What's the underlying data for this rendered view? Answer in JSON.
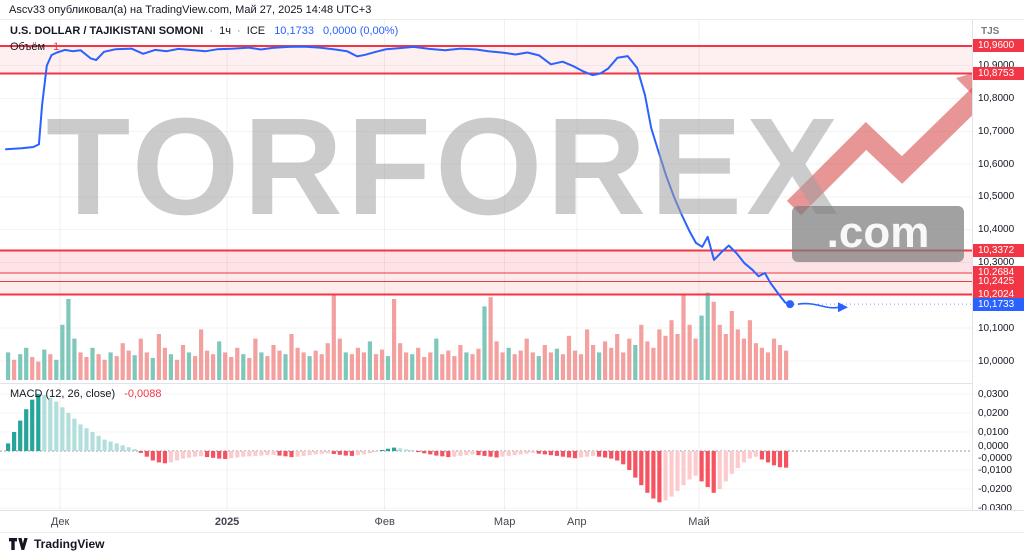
{
  "topbar": {
    "publish_text": "Ascv33 опубликовал(а) на TradingView.com, Май 27, 2025 14:48 UTC+3"
  },
  "header": {
    "symbol": "U.S. DOLLAR / TAJIKISTANI SOMONI",
    "sep": "·",
    "timeframe": "1ч",
    "exchange": "ICE",
    "price": "10,1733",
    "change": "0,0000 (0,00%)",
    "volume_label": "Объём",
    "volume_value": "1"
  },
  "macd_legend": {
    "label": "MACD (12, 26, close)",
    "value": "-0,0088"
  },
  "axis": {
    "currency": "TJS"
  },
  "watermark": {
    "text": "TORFOREX",
    "suffix": ".com"
  },
  "footer": {
    "brand": "TradingView"
  },
  "colors": {
    "accent_blue": "#2962FF",
    "level_red": "#F23645",
    "vol_up": "#6FC2B4",
    "vol_down": "#F29695",
    "macd_pos_rise": "#26A69A",
    "macd_pos_fall": "#B2DFDB",
    "macd_neg_fall": "#F7525F",
    "macd_neg_rise": "#FCCBCD"
  },
  "chart_data": {
    "type": "line",
    "title": "USD/TJS 1h line chart with volume and MACD",
    "price_axis": {
      "min": 9.933,
      "max": 11.039
    },
    "price_line": {
      "color": "#2962FF",
      "points": [
        [
          0,
          10.645
        ],
        [
          2,
          10.648
        ],
        [
          3.5,
          10.652
        ],
        [
          4.2,
          10.66
        ],
        [
          4.6,
          10.78
        ],
        [
          5.2,
          10.9
        ],
        [
          5.8,
          10.932
        ],
        [
          6.5,
          10.94
        ],
        [
          7.5,
          10.948
        ],
        [
          8.5,
          10.944
        ],
        [
          9.5,
          10.947
        ],
        [
          10.8,
          10.922
        ],
        [
          11.5,
          10.917
        ],
        [
          12.5,
          10.942
        ],
        [
          14,
          10.95
        ],
        [
          16,
          10.952
        ],
        [
          17.5,
          10.936
        ],
        [
          19,
          10.948
        ],
        [
          20.5,
          10.944
        ],
        [
          22,
          10.951
        ],
        [
          24,
          10.947
        ],
        [
          25.5,
          10.944
        ],
        [
          27,
          10.95
        ],
        [
          29,
          10.952
        ],
        [
          31,
          10.955
        ],
        [
          32.5,
          10.949
        ],
        [
          34,
          10.954
        ],
        [
          36,
          10.957
        ],
        [
          38,
          10.958
        ],
        [
          40,
          10.955
        ],
        [
          42,
          10.949
        ],
        [
          43.5,
          10.944
        ],
        [
          44.8,
          10.928
        ],
        [
          45.8,
          10.933
        ],
        [
          47,
          10.941
        ],
        [
          48.5,
          10.95
        ],
        [
          50,
          10.953
        ],
        [
          52,
          10.957
        ],
        [
          54,
          10.951
        ],
        [
          56,
          10.947
        ],
        [
          58,
          10.952
        ],
        [
          60,
          10.949
        ],
        [
          61.5,
          10.944
        ],
        [
          63.5,
          10.939
        ],
        [
          65,
          10.934
        ],
        [
          66.5,
          10.94
        ],
        [
          68,
          10.931
        ],
        [
          69.5,
          10.904
        ],
        [
          71,
          10.912
        ],
        [
          72.3,
          10.899
        ],
        [
          73.5,
          10.884
        ],
        [
          74.8,
          10.871
        ],
        [
          75.8,
          10.876
        ],
        [
          76.8,
          10.891
        ],
        [
          78,
          10.924
        ],
        [
          79.3,
          10.929
        ],
        [
          80.5,
          10.893
        ],
        [
          81.5,
          10.81
        ],
        [
          82.3,
          10.71
        ],
        [
          83.2,
          10.64
        ],
        [
          84.2,
          10.565
        ],
        [
          85.2,
          10.5
        ],
        [
          86.2,
          10.445
        ],
        [
          87.2,
          10.395
        ],
        [
          88,
          10.36
        ],
        [
          88.8,
          10.348
        ],
        [
          89.5,
          10.378
        ],
        [
          90.3,
          10.308
        ],
        [
          91.2,
          10.33
        ],
        [
          92.2,
          10.352
        ],
        [
          93.2,
          10.328
        ],
        [
          94.2,
          10.298
        ],
        [
          95.2,
          10.278
        ],
        [
          96,
          10.258
        ],
        [
          96.8,
          10.268
        ],
        [
          97.5,
          10.238
        ],
        [
          98.2,
          10.215
        ],
        [
          98.8,
          10.196
        ],
        [
          99.4,
          10.178
        ],
        [
          100,
          10.1733
        ]
      ]
    },
    "last_price": {
      "value": 10.1733,
      "label": "10,1733",
      "color": "#2962FF"
    },
    "level_color": "#F23645",
    "levels": [
      {
        "label": "10,9600",
        "value": 10.96,
        "w": 2
      },
      {
        "label": "10,8753",
        "value": 10.8753,
        "w": 2
      },
      {
        "label": "10,3372",
        "value": 10.3372,
        "w": 2
      },
      {
        "label": "10,2684",
        "value": 10.2684,
        "w": 1.2
      },
      {
        "label": "10,2425",
        "value": 10.2425,
        "w": 1.2
      },
      {
        "label": "10,2024",
        "value": 10.2024,
        "w": 2
      }
    ],
    "bands": [
      [
        10.96,
        10.8753,
        0.08
      ],
      [
        10.3372,
        10.2684,
        0.14
      ],
      [
        10.2684,
        10.2425,
        0.1
      ],
      [
        10.2425,
        10.2024,
        0.1
      ]
    ],
    "price_ticks": [
      {
        "label": "10,9000",
        "value": 10.9
      },
      {
        "label": "10,8000",
        "value": 10.8
      },
      {
        "label": "10,7000",
        "value": 10.7
      },
      {
        "label": "10,6000",
        "value": 10.6
      },
      {
        "label": "10,5000",
        "value": 10.5
      },
      {
        "label": "10,4000",
        "value": 10.4
      },
      {
        "label": "10,3000",
        "value": 10.3
      },
      {
        "label": "10,1000",
        "value": 10.1
      },
      {
        "label": "10,0000",
        "value": 10.0
      }
    ],
    "x_ticks": [
      {
        "label": "Дек",
        "t": 6.9
      },
      {
        "label": "2025",
        "t": 28.2
      },
      {
        "label": "Фев",
        "t": 48.3
      },
      {
        "label": "Мар",
        "t": 63.6
      },
      {
        "label": "Апр",
        "t": 72.8
      },
      {
        "label": "Май",
        "t": 88.4
      }
    ],
    "volume": {
      "up": "#6FC2B4",
      "down": "#F29695",
      "bars": [
        [
          0.3,
          "g"
        ],
        [
          0.22,
          "r"
        ],
        [
          0.28,
          "g"
        ],
        [
          0.35,
          "g"
        ],
        [
          0.25,
          "r"
        ],
        [
          0.2,
          "r"
        ],
        [
          0.33,
          "g"
        ],
        [
          0.28,
          "r"
        ],
        [
          0.22,
          "g"
        ],
        [
          0.6,
          "g"
        ],
        [
          0.88,
          "g"
        ],
        [
          0.45,
          "g"
        ],
        [
          0.3,
          "r"
        ],
        [
          0.25,
          "r"
        ],
        [
          0.35,
          "g"
        ],
        [
          0.28,
          "r"
        ],
        [
          0.22,
          "r"
        ],
        [
          0.3,
          "g"
        ],
        [
          0.26,
          "r"
        ],
        [
          0.4,
          "r"
        ],
        [
          0.32,
          "r"
        ],
        [
          0.27,
          "g"
        ],
        [
          0.45,
          "r"
        ],
        [
          0.3,
          "r"
        ],
        [
          0.24,
          "g"
        ],
        [
          0.5,
          "r"
        ],
        [
          0.35,
          "r"
        ],
        [
          0.28,
          "g"
        ],
        [
          0.22,
          "r"
        ],
        [
          0.38,
          "r"
        ],
        [
          0.3,
          "g"
        ],
        [
          0.26,
          "r"
        ],
        [
          0.55,
          "r"
        ],
        [
          0.32,
          "r"
        ],
        [
          0.28,
          "r"
        ],
        [
          0.42,
          "g"
        ],
        [
          0.3,
          "r"
        ],
        [
          0.25,
          "r"
        ],
        [
          0.35,
          "r"
        ],
        [
          0.28,
          "g"
        ],
        [
          0.24,
          "r"
        ],
        [
          0.45,
          "r"
        ],
        [
          0.3,
          "g"
        ],
        [
          0.26,
          "r"
        ],
        [
          0.38,
          "r"
        ],
        [
          0.32,
          "r"
        ],
        [
          0.28,
          "g"
        ],
        [
          0.5,
          "r"
        ],
        [
          0.35,
          "r"
        ],
        [
          0.3,
          "r"
        ],
        [
          0.26,
          "g"
        ],
        [
          0.32,
          "r"
        ],
        [
          0.28,
          "r"
        ],
        [
          0.4,
          "r"
        ],
        [
          0.92,
          "r"
        ],
        [
          0.45,
          "r"
        ],
        [
          0.3,
          "g"
        ],
        [
          0.28,
          "r"
        ],
        [
          0.35,
          "r"
        ],
        [
          0.3,
          "r"
        ],
        [
          0.42,
          "g"
        ],
        [
          0.28,
          "r"
        ],
        [
          0.33,
          "r"
        ],
        [
          0.26,
          "g"
        ],
        [
          0.88,
          "r"
        ],
        [
          0.4,
          "r"
        ],
        [
          0.3,
          "r"
        ],
        [
          0.28,
          "g"
        ],
        [
          0.35,
          "r"
        ],
        [
          0.25,
          "r"
        ],
        [
          0.3,
          "r"
        ],
        [
          0.45,
          "g"
        ],
        [
          0.28,
          "r"
        ],
        [
          0.32,
          "r"
        ],
        [
          0.26,
          "r"
        ],
        [
          0.38,
          "r"
        ],
        [
          0.3,
          "g"
        ],
        [
          0.28,
          "r"
        ],
        [
          0.34,
          "r"
        ],
        [
          0.8,
          "g"
        ],
        [
          0.9,
          "r"
        ],
        [
          0.42,
          "r"
        ],
        [
          0.3,
          "r"
        ],
        [
          0.35,
          "g"
        ],
        [
          0.28,
          "r"
        ],
        [
          0.32,
          "r"
        ],
        [
          0.45,
          "r"
        ],
        [
          0.3,
          "r"
        ],
        [
          0.26,
          "g"
        ],
        [
          0.38,
          "r"
        ],
        [
          0.3,
          "r"
        ],
        [
          0.34,
          "g"
        ],
        [
          0.28,
          "r"
        ],
        [
          0.48,
          "r"
        ],
        [
          0.32,
          "r"
        ],
        [
          0.28,
          "r"
        ],
        [
          0.55,
          "r"
        ],
        [
          0.38,
          "r"
        ],
        [
          0.3,
          "g"
        ],
        [
          0.42,
          "r"
        ],
        [
          0.35,
          "r"
        ],
        [
          0.5,
          "r"
        ],
        [
          0.3,
          "r"
        ],
        [
          0.45,
          "r"
        ],
        [
          0.38,
          "g"
        ],
        [
          0.6,
          "r"
        ],
        [
          0.42,
          "r"
        ],
        [
          0.35,
          "r"
        ],
        [
          0.55,
          "r"
        ],
        [
          0.48,
          "r"
        ],
        [
          0.65,
          "r"
        ],
        [
          0.5,
          "r"
        ],
        [
          0.92,
          "r"
        ],
        [
          0.6,
          "r"
        ],
        [
          0.45,
          "r"
        ],
        [
          0.7,
          "g"
        ],
        [
          0.95,
          "g"
        ],
        [
          0.85,
          "r"
        ],
        [
          0.6,
          "r"
        ],
        [
          0.5,
          "r"
        ],
        [
          0.75,
          "r"
        ],
        [
          0.55,
          "r"
        ],
        [
          0.45,
          "r"
        ],
        [
          0.65,
          "r"
        ],
        [
          0.4,
          "r"
        ],
        [
          0.35,
          "r"
        ],
        [
          0.3,
          "r"
        ],
        [
          0.45,
          "r"
        ],
        [
          0.38,
          "r"
        ],
        [
          0.32,
          "r"
        ]
      ]
    },
    "macd": {
      "params": "12, 26, close",
      "last_value": -0.0088,
      "pos_rise": "#26A69A",
      "pos_fall": "#B2DFDB",
      "neg_fall": "#F7525F",
      "neg_rise": "#FCCBCD",
      "values": [
        0.004,
        0.01,
        0.016,
        0.022,
        0.027,
        0.03,
        0.0295,
        0.028,
        0.026,
        0.023,
        0.02,
        0.017,
        0.014,
        0.012,
        0.01,
        0.008,
        0.006,
        0.005,
        0.004,
        0.003,
        0.002,
        0.001,
        -0.001,
        -0.003,
        -0.005,
        -0.006,
        -0.0065,
        -0.006,
        -0.005,
        -0.004,
        -0.0035,
        -0.003,
        -0.0028,
        -0.0032,
        -0.0036,
        -0.004,
        -0.0042,
        -0.0038,
        -0.0034,
        -0.003,
        -0.0028,
        -0.0026,
        -0.0024,
        -0.0022,
        -0.002,
        -0.0024,
        -0.0028,
        -0.0032,
        -0.003,
        -0.0026,
        -0.0022,
        -0.0018,
        -0.0014,
        -0.0012,
        -0.0016,
        -0.002,
        -0.0024,
        -0.0026,
        -0.0022,
        -0.0018,
        -0.0012,
        -0.0006,
        0.0004,
        0.0012,
        0.0018,
        0.0014,
        0.0008,
        0.0002,
        -0.0006,
        -0.0012,
        -0.0018,
        -0.0024,
        -0.0028,
        -0.0032,
        -0.003,
        -0.0026,
        -0.0022,
        -0.0018,
        -0.0022,
        -0.0026,
        -0.003,
        -0.0034,
        -0.003,
        -0.0026,
        -0.0022,
        -0.0018,
        -0.0014,
        -0.001,
        -0.0014,
        -0.0018,
        -0.0022,
        -0.0026,
        -0.003,
        -0.0034,
        -0.0038,
        -0.0034,
        -0.003,
        -0.0026,
        -0.003,
        -0.0034,
        -0.004,
        -0.005,
        -0.007,
        -0.01,
        -0.014,
        -0.018,
        -0.022,
        -0.025,
        -0.027,
        -0.026,
        -0.024,
        -0.021,
        -0.018,
        -0.015,
        -0.013,
        -0.016,
        -0.019,
        -0.022,
        -0.02,
        -0.016,
        -0.012,
        -0.009,
        -0.006,
        -0.004,
        -0.003,
        -0.0045,
        -0.006,
        -0.0075,
        -0.0085,
        -0.0088
      ],
      "ticks": [
        {
          "label": "0,0300",
          "pos": 0.03
        },
        {
          "label": "0,0200",
          "pos": 0.02
        },
        {
          "label": "0,0100",
          "pos": 0.01
        },
        {
          "label": "0,0000",
          "pos": 0.0026
        },
        {
          "label": "-0,0000",
          "pos": -0.0038
        },
        {
          "label": "-0,0100",
          "pos": -0.01
        },
        {
          "label": "-0,0200",
          "pos": -0.02
        },
        {
          "label": "-0,0300",
          "pos": -0.03
        }
      ]
    },
    "annotation_arrow": {
      "from_t": 101,
      "to_t": 106.5,
      "price": 10.167,
      "color": "#2962FF"
    }
  }
}
